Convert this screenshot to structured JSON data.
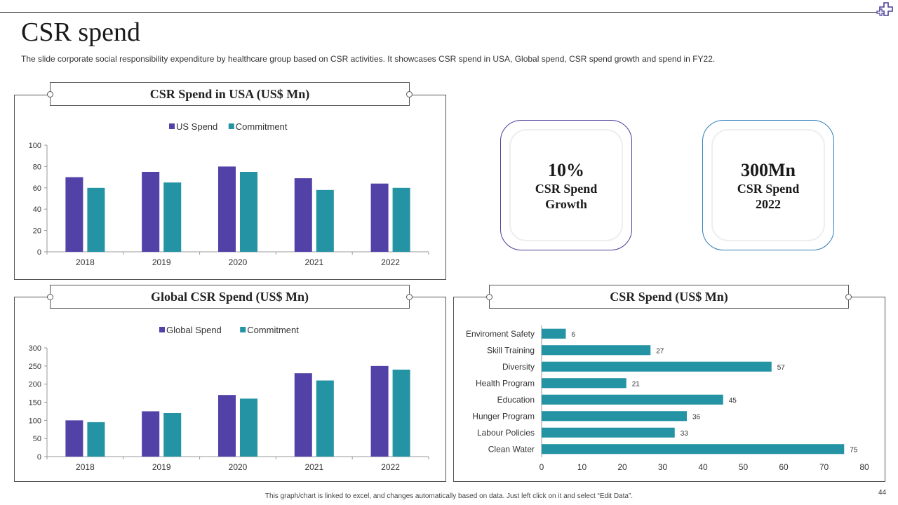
{
  "slide": {
    "title": "CSR spend",
    "subtitle": "The slide corporate social responsibility expenditure by healthcare group based on CSR activities. It showcases CSR spend in USA, Global spend, CSR spend growth and spend in FY22.",
    "footer_note": "This graph/chart is linked to excel, and changes automatically based on data. Just left click on it and select “Edit Data”.",
    "page_number": "44"
  },
  "colors": {
    "primary": "#5242a8",
    "secondary": "#2494a4",
    "card1_border": "#4a3f99",
    "card2_border": "#2d7fb8"
  },
  "kpis": [
    {
      "value": "10%",
      "label": "CSR Spend Growth"
    },
    {
      "value": "300Mn",
      "label": "CSR Spend 2022"
    }
  ],
  "chart_data": [
    {
      "id": "usa",
      "type": "bar",
      "title": "CSR Spend in USA (US$ Mn)",
      "categories": [
        "2018",
        "2019",
        "2020",
        "2021",
        "2022"
      ],
      "series": [
        {
          "name": "US Spend",
          "values": [
            70,
            75,
            80,
            69,
            64
          ]
        },
        {
          "name": "Commitment",
          "values": [
            60,
            65,
            75,
            58,
            60
          ]
        }
      ],
      "ylim": [
        0,
        100
      ],
      "yticks": [
        0,
        20,
        40,
        60,
        80,
        100
      ],
      "legend": "top-center"
    },
    {
      "id": "global",
      "type": "bar",
      "title": "Global CSR Spend (US$ Mn)",
      "categories": [
        "2018",
        "2019",
        "2020",
        "2021",
        "2022"
      ],
      "series": [
        {
          "name": "Global Spend",
          "values": [
            100,
            125,
            170,
            230,
            250
          ]
        },
        {
          "name": "Commitment",
          "values": [
            95,
            120,
            160,
            210,
            240
          ]
        }
      ],
      "ylim": [
        0,
        300
      ],
      "yticks": [
        0,
        50,
        100,
        150,
        200,
        250,
        300
      ],
      "legend": "top-center"
    },
    {
      "id": "activities",
      "type": "bar",
      "orientation": "horizontal",
      "title": "CSR Spend (US$ Mn)",
      "categories": [
        "Enviroment Safety",
        "Skill Training",
        "Diversity",
        "Health Program",
        "Education",
        "Hunger Program",
        "Labour Policies",
        "Clean Water"
      ],
      "values": [
        6,
        27,
        57,
        21,
        45,
        36,
        33,
        75
      ],
      "xlim": [
        0,
        80
      ],
      "xticks": [
        0,
        10,
        20,
        30,
        40,
        50,
        60,
        70,
        80
      ]
    }
  ]
}
